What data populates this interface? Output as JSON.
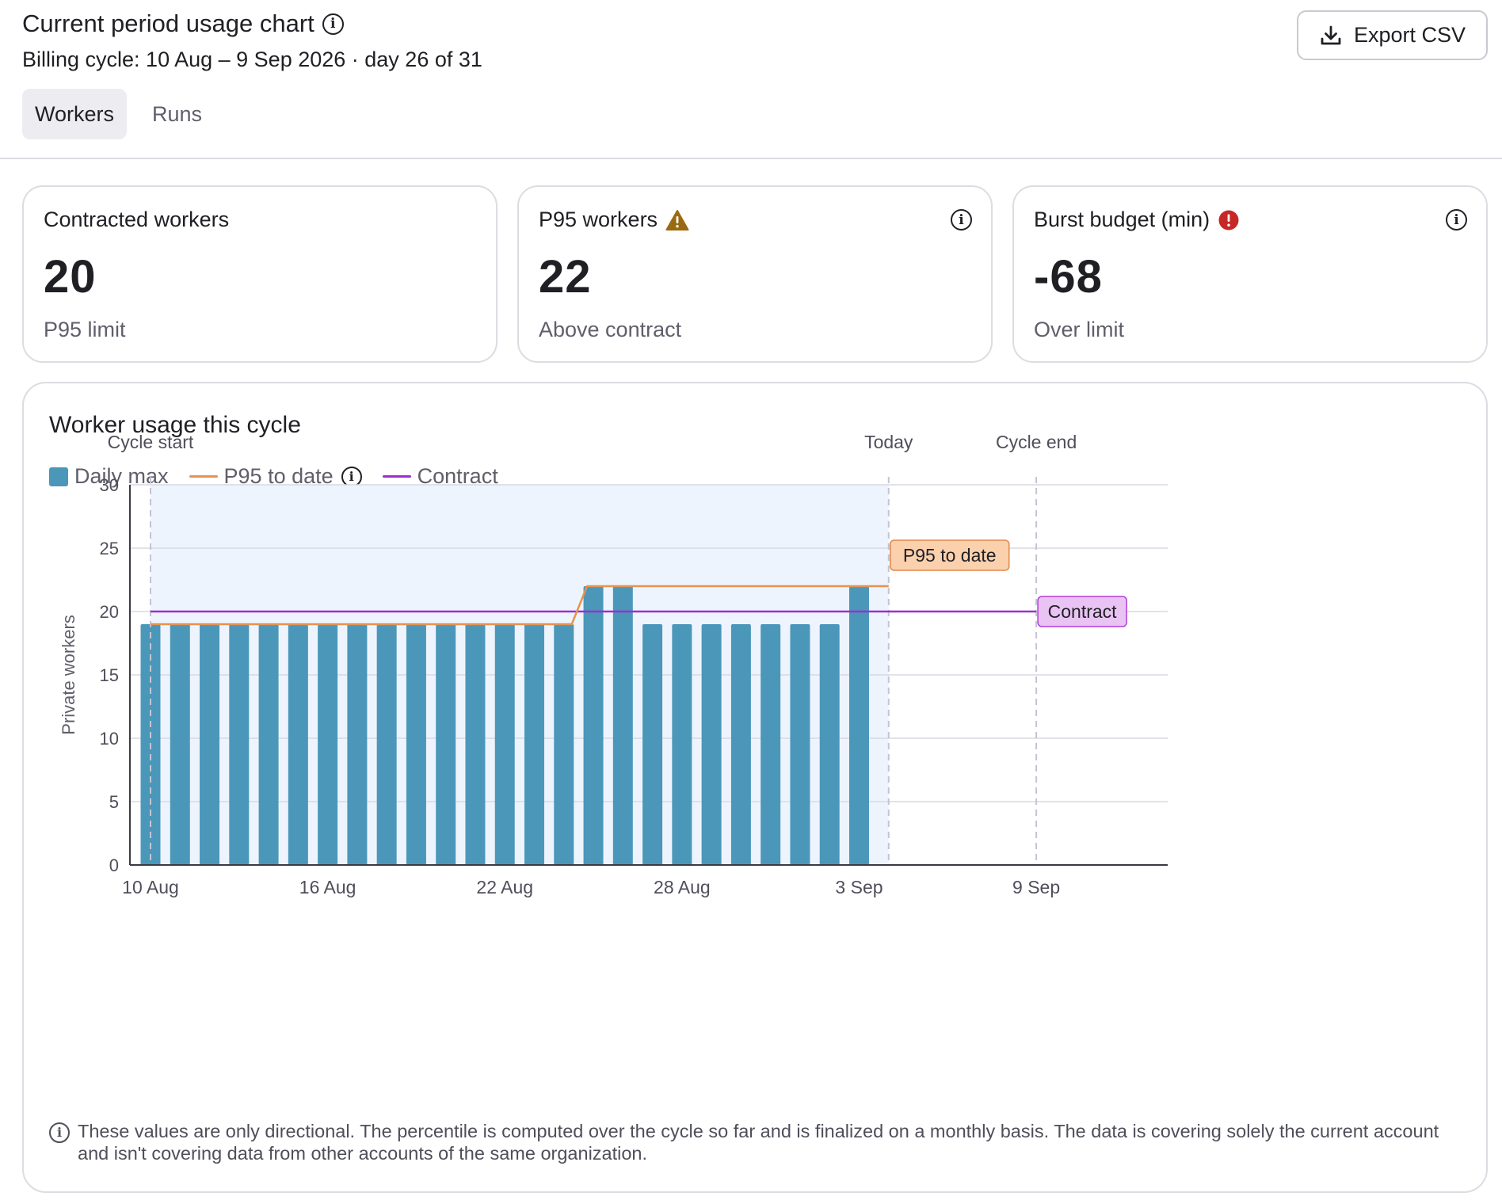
{
  "header": {
    "title": "Current period usage chart",
    "billing_cycle": "Billing cycle: 10 Aug – 9 Sep 2026 · day 26 of 31",
    "export_label": "Export CSV",
    "tabs": [
      {
        "label": "Workers",
        "active": true
      },
      {
        "label": "Runs",
        "active": false
      }
    ]
  },
  "cards": [
    {
      "title": "Contracted workers",
      "value": "20",
      "note": "P95 limit"
    },
    {
      "title": "P95 workers",
      "value": "22",
      "note": "Above contract",
      "status_icon": "warning-icon"
    },
    {
      "title": "Burst budget (min)",
      "value": "-68",
      "note": "Over limit",
      "status_icon": "error-icon"
    }
  ],
  "panel": {
    "title": "Worker usage this cycle",
    "footnote": "These values are only directional. The percentile is computed over the cycle so far and is finalized on a monthly basis. The data is covering solely the current account and isn't covering data from other accounts of the same organization."
  },
  "colors": {
    "bar": "#4b97ba",
    "p95": "#e8924f",
    "contract": "#9c2fcf",
    "elapsed_shade": "#eef4fd",
    "p95_tag_bg": "#fbd0ad",
    "contract_tag_bg": "#e9c3f3"
  },
  "chart_data": {
    "type": "bar",
    "ylabel": "Private workers",
    "ylim": [
      0,
      30
    ],
    "y_ticks": [
      0,
      5,
      10,
      15,
      20,
      25,
      30
    ],
    "x_ticks": [
      {
        "day": 0,
        "label": "10 Aug"
      },
      {
        "day": 6,
        "label": "16 Aug"
      },
      {
        "day": 12,
        "label": "22 Aug"
      },
      {
        "day": 18,
        "label": "28 Aug"
      },
      {
        "day": 24,
        "label": "3 Sep"
      },
      {
        "day": 30,
        "label": "9 Sep"
      }
    ],
    "categories": [
      "10 Aug",
      "11 Aug",
      "12 Aug",
      "13 Aug",
      "14 Aug",
      "15 Aug",
      "16 Aug",
      "17 Aug",
      "18 Aug",
      "19 Aug",
      "20 Aug",
      "21 Aug",
      "22 Aug",
      "23 Aug",
      "24 Aug",
      "25 Aug",
      "26 Aug",
      "27 Aug",
      "28 Aug",
      "29 Aug",
      "30 Aug",
      "31 Aug",
      "1 Sep",
      "2 Sep",
      "3 Sep",
      "4 Sep"
    ],
    "series": [
      {
        "name": "Daily max",
        "values": [
          19,
          19,
          19,
          19,
          19,
          19,
          19,
          19,
          19,
          19,
          19,
          19,
          19,
          19,
          19,
          22,
          22,
          19,
          19,
          19,
          19,
          19,
          19,
          19,
          22,
          0
        ]
      },
      {
        "name": "P95 to date",
        "values": [
          19,
          19,
          19,
          19,
          19,
          19,
          19,
          19,
          19,
          19,
          19,
          19,
          19,
          19,
          19,
          22,
          22,
          22,
          22,
          22,
          22,
          22,
          22,
          22,
          22,
          22
        ]
      },
      {
        "name": "Contract",
        "value": 20
      }
    ],
    "markers": [
      {
        "label": "Cycle start",
        "day": 0
      },
      {
        "label": "Today",
        "day": 25
      },
      {
        "label": "Cycle end",
        "day": 30
      }
    ],
    "annotations": [
      "P95 to date",
      "Contract"
    ],
    "grid": true,
    "legend": "top-left"
  }
}
